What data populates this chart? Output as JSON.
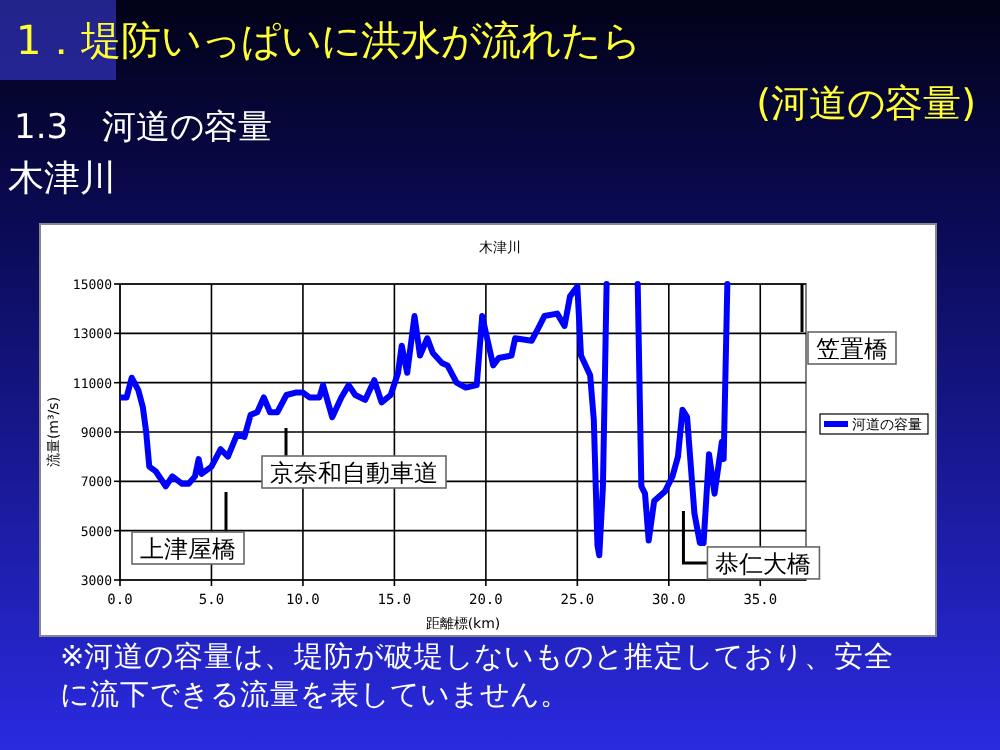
{
  "chart_data": {
    "type": "line",
    "title": "1．堤防いっぱいに洪水が流れたら",
    "subtitle": "(河道の容量)",
    "xlabel": "距離標(km)",
    "ylabel": "流量(m³/s)",
    "annotations": [
      "1.3　河道の容量",
      "木津川",
      "木津川",
      "※河道の容量は、堤防が破堤しないものと推定しており、安全に流下できる流量を表していません。",
      "上津屋橋",
      "京奈和自動車道",
      {
        "text": "恭仁大橋",
        "x": 30.8,
        "y": 5800
      },
      "笠置橋"
    ],
    "x": [
      0,
      0.36,
      0.64,
      1.0,
      1.25,
      1.43,
      1.6,
      1.96,
      2.5,
      2.86,
      3.4,
      3.75,
      4.1,
      4.3,
      4.46,
      5.0,
      5.5,
      5.9,
      6.4,
      6.8,
      7.14,
      7.5,
      7.86,
      8.2,
      8.6,
      9.1,
      9.6,
      10.0,
      10.36,
      10.9,
      11.1,
      11.6,
      12.1,
      12.5,
      12.86,
      13.4,
      13.9,
      14.3,
      14.8,
      15.2,
      15.4,
      15.7,
      16.1,
      16.4,
      16.8,
      17.1,
      17.6,
      17.9,
      18.4,
      18.9,
      19.5,
      19.8,
      20.4,
      20.7,
      21.4,
      21.6,
      22.5,
      22.86,
      23.2,
      23.9,
      24.3,
      24.6,
      25.0,
      25.2,
      25.7,
      25.9,
      26.1,
      26.2,
      26.4,
      26.6,
      27.5,
      28.3,
      28.5,
      28.7,
      28.9,
      29.2,
      29.8,
      30.2,
      30.5,
      30.75,
      31.0,
      31.4,
      31.7,
      31.9,
      32.2,
      32.5,
      32.9,
      33.0,
      33.2
    ],
    "series": [
      {
        "name": "河道の容量",
        "color": "#0000ff",
        "values": [
          10400,
          10400,
          11200,
          10700,
          10000,
          9000,
          7600,
          7400,
          6800,
          7200,
          6900,
          6900,
          7200,
          7900,
          7300,
          7600,
          8300,
          8000,
          8900,
          8800,
          9700,
          9800,
          10400,
          9800,
          9800,
          10500,
          10600,
          10600,
          10400,
          10400,
          10900,
          9600,
          10400,
          10900,
          10500,
          10300,
          11100,
          10200,
          10500,
          11400,
          12500,
          11400,
          13700,
          12100,
          12800,
          12200,
          11800,
          11700,
          11000,
          10800,
          10900,
          13700,
          11700,
          12000,
          12100,
          12800,
          12700,
          13200,
          13700,
          13800,
          13300,
          14500,
          14900,
          12100,
          11300,
          9500,
          4400,
          4000,
          6800,
          15000,
          null,
          15000,
          6800,
          6500,
          4600,
          6200,
          6600,
          7200,
          8000,
          9900,
          9600,
          5700,
          4500,
          4500,
          8100,
          6500,
          8600,
          7900,
          15000
        ]
      }
    ],
    "xlim": [
      0,
      37.5
    ],
    "xticks": [
      {
        "value": 0,
        "label": "0.0"
      },
      {
        "value": 5,
        "label": "5.0"
      },
      {
        "value": 10,
        "label": "10.0"
      },
      {
        "value": 15,
        "label": "15.0"
      },
      {
        "value": 20,
        "label": "20.0"
      },
      {
        "value": 25,
        "label": "25.0"
      },
      {
        "value": 30,
        "label": "30.0"
      },
      {
        "value": 35,
        "label": "35.0"
      }
    ],
    "ylim": [
      3000,
      15000
    ],
    "yticks": [
      3000,
      5000,
      7000,
      9000,
      11000,
      13000,
      15000
    ],
    "grid": true,
    "legend": "right",
    "marker": "none",
    "line_style": "solid"
  }
}
